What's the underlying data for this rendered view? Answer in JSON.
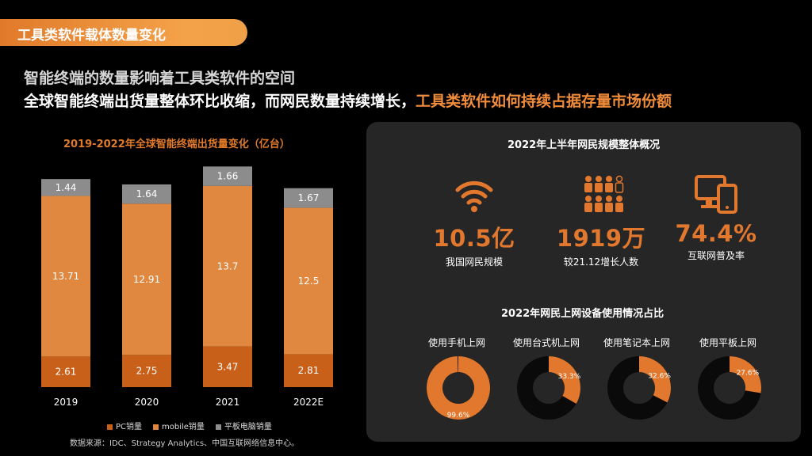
{
  "header": {
    "tab_title": "工具类软件载体数量变化",
    "subtitle_line1": "智能终端的数量影响着工具类软件的空间",
    "subtitle_line2_white": "全球智能终端出货量整体环比收缩，而网民数量持续增长，",
    "subtitle_line2_orange": "工具类软件如何持续占据存量市场份额"
  },
  "colors": {
    "pc": "#c8601a",
    "mobile": "#e08840",
    "tablet": "#8c8c8c",
    "accent": "#e2782e"
  },
  "chart_data": {
    "type": "bar",
    "title": "2019-2022年全球智能终端出货量变化（亿台）",
    "stacked": true,
    "categories": [
      "2019",
      "2020",
      "2021",
      "2022E"
    ],
    "series": [
      {
        "name": "PC销量",
        "values": [
          2.61,
          2.75,
          3.47,
          2.81
        ]
      },
      {
        "name": "mobile销量",
        "values": [
          13.71,
          12.91,
          13.7,
          12.5
        ]
      },
      {
        "name": "平板电脑销量",
        "values": [
          1.44,
          1.64,
          1.66,
          1.67
        ]
      }
    ],
    "value_labels": [
      [
        "2.61",
        "2.75",
        "3.47",
        "2.81"
      ],
      [
        "13.71",
        "12.91",
        "13.7",
        "12.5"
      ],
      [
        "1.44",
        "1.64",
        "1.66",
        "1.67"
      ]
    ],
    "legend": [
      "PC销量",
      "mobile销量",
      "平板电脑销量"
    ],
    "legend_position": "bottom",
    "grid": false
  },
  "source_note": "数据来源：IDC、Strategy Analytics、中国互联网络信息中心。",
  "panel": {
    "title_top": "2022年上半年网民规模整体概况",
    "stats": [
      {
        "value": "10.5亿",
        "label": "我国网民规模",
        "icon": "wifi-icon"
      },
      {
        "value": "1919万",
        "label": "较21.12增长人数",
        "icon": "people-icon"
      },
      {
        "value": "74.4%",
        "label": "互联网普及率",
        "icon": "devices-icon"
      }
    ],
    "title_bottom": "2022年网民上网设备使用情况占比",
    "devices": [
      {
        "label": "使用手机上网",
        "percent": 99.6,
        "percent_text": "99.6%"
      },
      {
        "label": "使用台式机上网",
        "percent": 33.3,
        "percent_text": "33.3%"
      },
      {
        "label": "使用笔记本上网",
        "percent": 32.6,
        "percent_text": "32.6%"
      },
      {
        "label": "使用平板上网",
        "percent": 27.6,
        "percent_text": "27.6%"
      }
    ]
  }
}
